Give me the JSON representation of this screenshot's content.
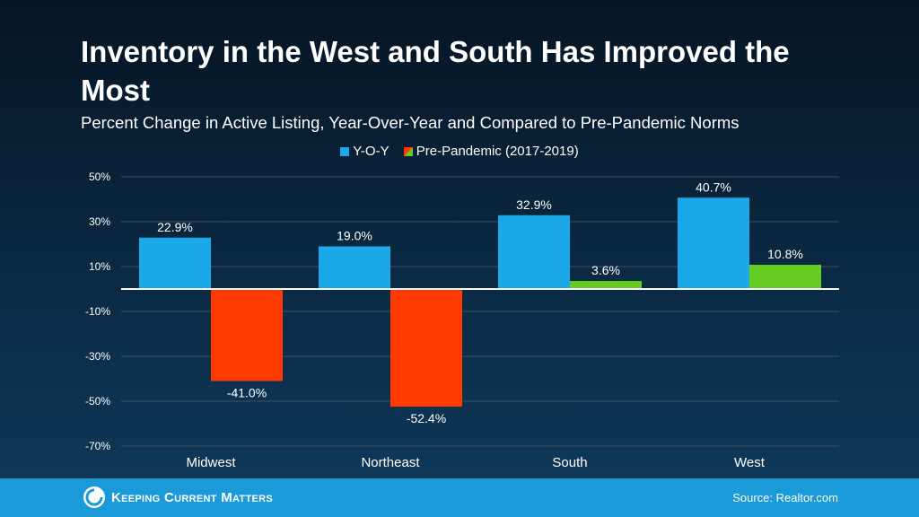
{
  "title": "Inventory in the West and South Has Improved the Most",
  "subtitle": "Percent Change in Active Listing, Year-Over-Year and Compared to Pre-Pandemic Norms",
  "legend": {
    "yoy": "Y-O-Y",
    "pre": "Pre-Pandemic (2017-2019)"
  },
  "colors": {
    "yoy": "#1aa8e8",
    "pre_negative": "#ff3a00",
    "pre_positive": "#66cc22",
    "grid": "#3d4f60",
    "zero": "#ffffff"
  },
  "chart_data": {
    "type": "bar",
    "title": "Percent Change in Active Listing, Year-Over-Year and Compared to Pre-Pandemic Norms",
    "categories": [
      "Midwest",
      "Northeast",
      "South",
      "West"
    ],
    "series": [
      {
        "name": "Y-O-Y",
        "values": [
          22.9,
          19.0,
          32.9,
          40.7
        ],
        "labels": [
          "22.9%",
          "19.0%",
          "32.9%",
          "40.7%"
        ]
      },
      {
        "name": "Pre-Pandemic (2017-2019)",
        "values": [
          -41.0,
          -52.4,
          3.6,
          10.8
        ],
        "labels": [
          "-41.0%",
          "-52.4%",
          "3.6%",
          "10.8%"
        ]
      }
    ],
    "yticks": [
      50,
      30,
      10,
      -10,
      -30,
      -50,
      -70
    ],
    "ytick_labels": [
      "50%",
      "30%",
      "10%",
      "-10%",
      "-30%",
      "-50%",
      "-70%"
    ],
    "ylim": [
      -70,
      50
    ],
    "xlabel": "",
    "ylabel": "",
    "grid": true,
    "legend_position": "top-center"
  },
  "footer": {
    "brand": "Keeping Current Matters",
    "source": "Source: Realtor.com"
  }
}
